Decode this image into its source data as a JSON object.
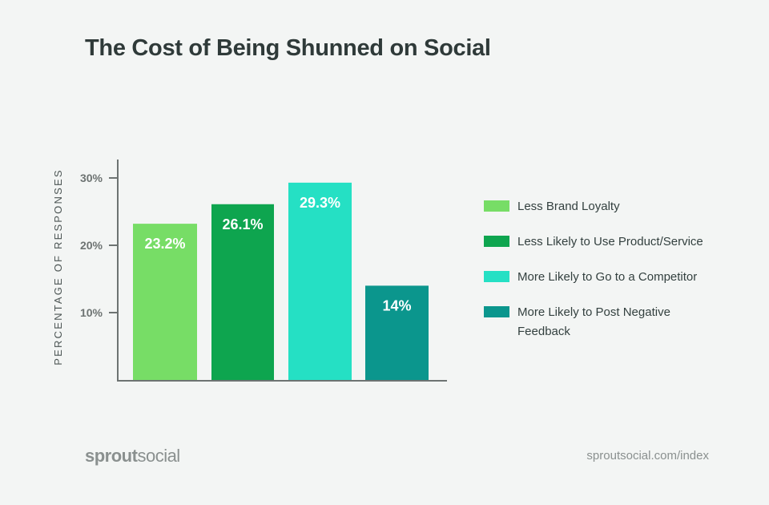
{
  "title": "The Cost of Being Shunned on Social",
  "chart_data": {
    "type": "bar",
    "title": "The Cost of Being Shunned on Social",
    "ylabel": "PERCENTAGE OF RESPONSES",
    "xlabel": "",
    "categories": [
      "Less Brand Loyalty",
      "Less Likely to Use Product/Service",
      "More Likely to Go to a Competitor",
      "More Likely to Post Negative Feedback"
    ],
    "values": [
      23.2,
      26.1,
      29.3,
      14
    ],
    "data_labels": [
      "23.2%",
      "26.1%",
      "29.3%",
      "14%"
    ],
    "colors": [
      "#77dd66",
      "#0ea54f",
      "#25e0c4",
      "#0b968d"
    ],
    "yticks": [
      10,
      20,
      30
    ],
    "ytick_labels": [
      "10%",
      "20%",
      "30%"
    ],
    "ylim": [
      0,
      32.5
    ],
    "grid": false,
    "legend_position": "right"
  },
  "footer": {
    "logo_bold": "sprout",
    "logo_light": "social",
    "source": "sproutsocial.com/index"
  }
}
